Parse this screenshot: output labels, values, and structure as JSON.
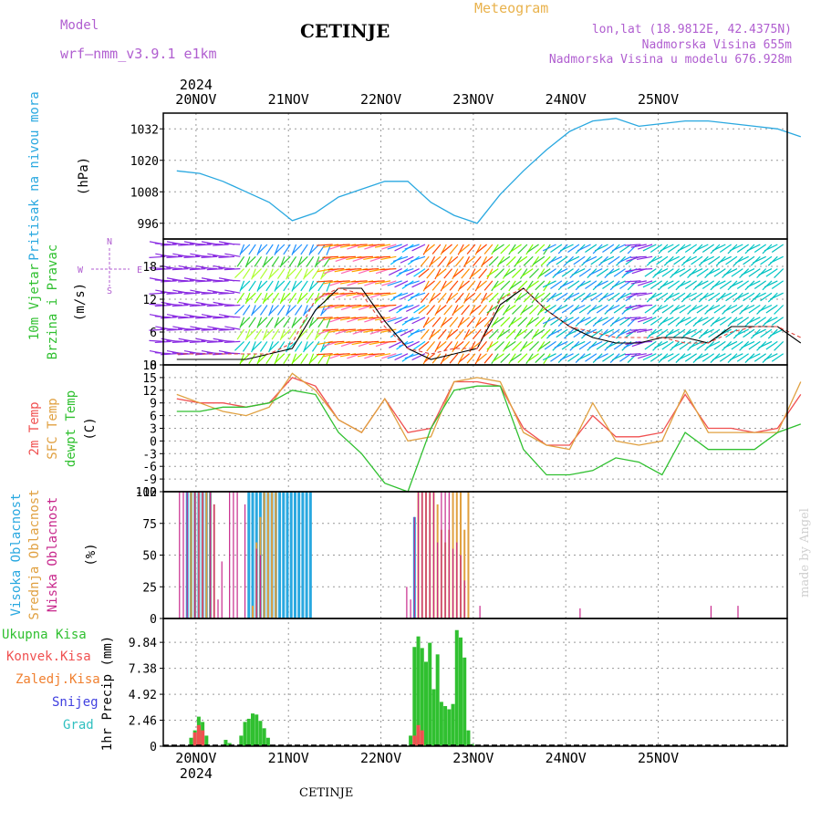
{
  "header": {
    "model_label": "Model",
    "model_name": "wrf—nmm_v3.9.1 e1km",
    "station": "CETINJE",
    "meteogram_label": "Meteogram",
    "lonlat": "lon,lat (18.9812E, 42.4375N)",
    "elevation": "Nadmorska Visina 655m",
    "model_elevation": "Nadmorska Visina u modelu 676.928m",
    "year_top": "2024",
    "year_bottom": "2024"
  },
  "footer": {
    "station": "CETINJE",
    "credit": "made by Angel"
  },
  "colors": {
    "pressure": "#29a8e0",
    "temp2m": "#f05050",
    "sfc": "#e0a040",
    "dew": "#30c030",
    "high_cloud": "#29a8e0",
    "mid_cloud": "#e0a040",
    "low_cloud": "#c8288c",
    "precip_total": "#30c030",
    "precip_conv": "#f05050",
    "precip_frozen": "#f08030",
    "snow": "#4040e0",
    "hail": "#30c0c0",
    "grid": "#999999",
    "wind_label": "#30c030"
  },
  "chart_data": [
    {
      "type": "line",
      "panel": "pressure",
      "ylabel": "Pritisak na nivou mora",
      "unit": "(hPa)",
      "yticks": [
        996,
        1008,
        1020,
        1032
      ],
      "ylim": [
        990,
        1038
      ],
      "x": [
        0,
        6,
        12,
        18,
        24,
        30,
        36,
        42,
        48,
        54,
        60,
        66,
        72,
        78,
        84,
        90,
        96,
        102,
        108,
        114,
        120,
        126,
        132,
        138,
        144,
        150,
        156,
        162
      ],
      "series": [
        {
          "values": [
            1016,
            1015,
            1012,
            1008,
            1004,
            997,
            1000,
            1006,
            1009,
            1012,
            1012,
            1004,
            999,
            996,
            1007,
            1016,
            1024,
            1031,
            1035,
            1036,
            1033,
            1034,
            1035,
            1035,
            1034,
            1033,
            1032,
            1029
          ]
        }
      ]
    },
    {
      "type": "line",
      "panel": "wind",
      "ylabel": "10m Vjetar Brzina i Pravac",
      "unit": "(m/s)",
      "yticks": [
        0,
        6,
        12,
        18
      ],
      "ylim": [
        0,
        23
      ],
      "compass": [
        "N",
        "E",
        "S",
        "W"
      ],
      "x": [
        0,
        6,
        12,
        18,
        24,
        30,
        36,
        42,
        48,
        54,
        60,
        66,
        72,
        78,
        84,
        90,
        96,
        102,
        108,
        114,
        120,
        126,
        132,
        138,
        144,
        150,
        156,
        162
      ],
      "series": [
        {
          "values": [
            1,
            1,
            1,
            1,
            2,
            3,
            10,
            14,
            14,
            8,
            3,
            1,
            2,
            3,
            11,
            14,
            10,
            7,
            5,
            4,
            4,
            5,
            5,
            4,
            7,
            7,
            7,
            4
          ]
        },
        {
          "values": [
            2,
            2,
            2,
            2,
            2,
            4,
            12,
            14,
            13,
            7,
            3,
            2,
            3,
            3,
            12,
            14,
            10,
            7,
            6,
            5,
            5,
            5,
            4,
            4,
            6,
            7,
            7,
            5
          ]
        }
      ]
    },
    {
      "type": "line",
      "panel": "temperature",
      "ylabel": [
        "2m Temp",
        "SFC Temp",
        "dewpt Temp"
      ],
      "unit": "(C)",
      "yticks": [
        -12,
        -9,
        -6,
        -3,
        0,
        3,
        6,
        9,
        12,
        15,
        18
      ],
      "ylim": [
        -12,
        18
      ],
      "x": [
        0,
        6,
        12,
        18,
        24,
        30,
        36,
        42,
        48,
        54,
        60,
        66,
        72,
        78,
        84,
        90,
        96,
        102,
        108,
        114,
        120,
        126,
        132,
        138,
        144,
        150,
        156,
        162
      ],
      "series": [
        {
          "name": "2m Temp",
          "values": [
            10,
            9,
            9,
            8,
            9,
            15,
            13,
            5,
            2,
            10,
            2,
            3,
            14,
            14,
            13,
            3,
            -1,
            -1,
            6,
            1,
            1,
            2,
            11,
            3,
            3,
            2,
            3,
            11
          ]
        },
        {
          "name": "SFC Temp",
          "values": [
            11,
            9,
            7,
            6,
            8,
            16,
            12,
            5,
            2,
            10,
            0,
            1,
            14,
            15,
            14,
            2,
            -1,
            -2,
            9,
            0,
            -1,
            0,
            12,
            2,
            2,
            2,
            2,
            14
          ]
        },
        {
          "name": "dewpt Temp",
          "values": [
            7,
            7,
            8,
            8,
            9,
            12,
            11,
            2,
            -3,
            -10,
            -12,
            3,
            12,
            13,
            13,
            -2,
            -8,
            -8,
            -7,
            -4,
            -5,
            -8,
            2,
            -2,
            -2,
            -2,
            2,
            4
          ]
        }
      ]
    },
    {
      "type": "bar",
      "panel": "cloud",
      "ylabel": [
        "Visoka Oblacnost",
        "Srednja Oblacnost",
        "Niska Oblacnost"
      ],
      "unit": "(%)",
      "yticks": [
        0,
        25,
        50,
        75,
        100
      ],
      "ylim": [
        0,
        100
      ],
      "series": [
        {
          "name": "Visoka Oblacnost",
          "x": [
            2,
            3,
            4,
            5,
            6,
            7,
            8,
            18,
            19,
            20,
            21,
            22,
            23,
            24,
            25,
            26,
            27,
            28,
            29,
            30,
            31,
            32,
            33,
            34,
            61
          ],
          "values": [
            100,
            100,
            100,
            100,
            100,
            100,
            100,
            100,
            100,
            100,
            100,
            100,
            100,
            100,
            100,
            100,
            100,
            100,
            100,
            100,
            100,
            100,
            100,
            100,
            80
          ]
        },
        {
          "name": "Srednja Oblacnost",
          "x": [
            3,
            4,
            5,
            6,
            7,
            8,
            9,
            19,
            20,
            21,
            22,
            23,
            24,
            25,
            62,
            63,
            64,
            65,
            66,
            67,
            68,
            69,
            70,
            71,
            72,
            73,
            74,
            75
          ],
          "values": [
            100,
            100,
            100,
            100,
            100,
            100,
            90,
            10,
            60,
            80,
            100,
            100,
            100,
            100,
            100,
            100,
            100,
            100,
            100,
            90,
            70,
            60,
            70,
            100,
            100,
            100,
            70,
            100
          ]
        },
        {
          "name": "Niska Oblacnost",
          "x": [
            0,
            1,
            2,
            4,
            5,
            6,
            8,
            9,
            10,
            11,
            13,
            14,
            15,
            17,
            20,
            21,
            59,
            60,
            61,
            62,
            63,
            64,
            65,
            66,
            67,
            68,
            69,
            70,
            71,
            72,
            73,
            74,
            78,
            104,
            138,
            145
          ],
          "values": [
            100,
            100,
            100,
            100,
            100,
            100,
            100,
            90,
            15,
            45,
            100,
            100,
            100,
            90,
            55,
            50,
            25,
            15,
            80,
            100,
            100,
            100,
            100,
            100,
            60,
            100,
            100,
            100,
            55,
            60,
            50,
            30,
            10,
            8,
            10,
            10
          ]
        }
      ]
    },
    {
      "type": "bar",
      "panel": "precip",
      "ylabel": "1hr Precip",
      "unit": "(mm)",
      "legend": [
        "Ukupna Kisa",
        "Konvek.Kisa",
        "Zaledj.Kisa",
        "Snijeg",
        "Grad"
      ],
      "yticks": [
        0,
        2.46,
        4.92,
        7.38,
        9.84
      ],
      "ylim": [
        0,
        12.1
      ],
      "series": [
        {
          "name": "Ukupna Kisa",
          "x": [
            3,
            4,
            5,
            6,
            7,
            12,
            13,
            16,
            17,
            18,
            19,
            20,
            21,
            22,
            23,
            60,
            61,
            62,
            63,
            64,
            65,
            66,
            67,
            68,
            69,
            70,
            71,
            72,
            73,
            74,
            75,
            76
          ],
          "values": [
            0.8,
            1.5,
            2.8,
            2.3,
            1.0,
            0.6,
            0.3,
            1.0,
            2.3,
            2.6,
            3.1,
            3.0,
            2.4,
            1.7,
            0.8,
            1.0,
            9.4,
            10.4,
            9.3,
            8.0,
            9.8,
            5.4,
            8.7,
            4.2,
            3.8,
            3.5,
            4.0,
            11.0,
            10.3,
            8.4,
            1.5,
            0.2
          ]
        },
        {
          "name": "Konvek.Kisa",
          "x": [
            4,
            5,
            6,
            61,
            62,
            63
          ],
          "values": [
            1.3,
            2.0,
            1.5,
            1.0,
            2.0,
            1.5
          ]
        }
      ]
    }
  ],
  "x_axis": {
    "hours_per_day": 24,
    "start_hour": -3.5,
    "end_hour": 158.5,
    "days": [
      {
        "label": "20NOV",
        "hour": 5
      },
      {
        "label": "21NOV",
        "hour": 29
      },
      {
        "label": "22NOV",
        "hour": 53
      },
      {
        "label": "23NOV",
        "hour": 77
      },
      {
        "label": "24NOV",
        "hour": 101
      },
      {
        "label": "25NOV",
        "hour": 125
      }
    ]
  }
}
